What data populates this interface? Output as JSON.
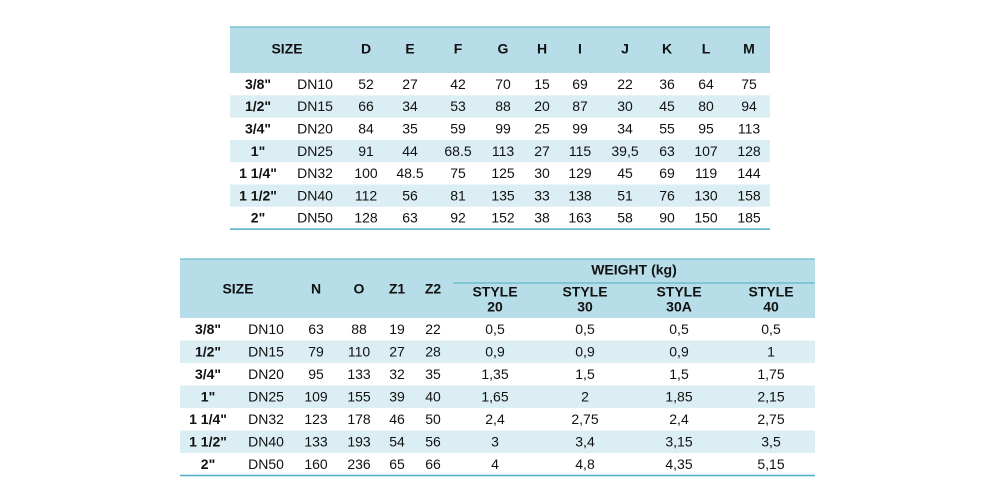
{
  "tables": [
    {
      "header": {
        "size": "SIZE",
        "columns": [
          "D",
          "E",
          "F",
          "G",
          "H",
          "I",
          "J",
          "K",
          "L",
          "M"
        ]
      },
      "rows": [
        [
          "3/8\"",
          "DN10",
          "52",
          "27",
          "42",
          "70",
          "15",
          "69",
          "22",
          "36",
          "64",
          "75"
        ],
        [
          "1/2\"",
          "DN15",
          "66",
          "34",
          "53",
          "88",
          "20",
          "87",
          "30",
          "45",
          "80",
          "94"
        ],
        [
          "3/4\"",
          "DN20",
          "84",
          "35",
          "59",
          "99",
          "25",
          "99",
          "34",
          "55",
          "95",
          "113"
        ],
        [
          "1\"",
          "DN25",
          "91",
          "44",
          "68.5",
          "113",
          "27",
          "115",
          "39,5",
          "63",
          "107",
          "128"
        ],
        [
          "1 1/4\"",
          "DN32",
          "100",
          "48.5",
          "75",
          "125",
          "30",
          "129",
          "45",
          "69",
          "119",
          "144"
        ],
        [
          "1 1/2\"",
          "DN40",
          "112",
          "56",
          "81",
          "135",
          "33",
          "138",
          "51",
          "76",
          "130",
          "158"
        ],
        [
          "2\"",
          "DN50",
          "128",
          "63",
          "92",
          "152",
          "38",
          "163",
          "58",
          "90",
          "150",
          "185"
        ]
      ]
    },
    {
      "header": {
        "size": "SIZE",
        "columns": [
          "N",
          "O",
          "Z1",
          "Z2"
        ],
        "group": "WEIGHT (kg)",
        "group_columns": [
          [
            "STYLE",
            "20"
          ],
          [
            "STYLE",
            "30"
          ],
          [
            "STYLE",
            "30A"
          ],
          [
            "STYLE",
            "40"
          ]
        ]
      },
      "rows": [
        [
          "3/8\"",
          "DN10",
          "63",
          "88",
          "19",
          "22",
          "0,5",
          "0,5",
          "0,5",
          "0,5"
        ],
        [
          "1/2\"",
          "DN15",
          "79",
          "110",
          "27",
          "28",
          "0,9",
          "0,9",
          "0,9",
          "1"
        ],
        [
          "3/4\"",
          "DN20",
          "95",
          "133",
          "32",
          "35",
          "1,35",
          "1,5",
          "1,5",
          "1,75"
        ],
        [
          "1\"",
          "DN25",
          "109",
          "155",
          "39",
          "40",
          "1,65",
          "2",
          "1,85",
          "2,15"
        ],
        [
          "1 1/4\"",
          "DN32",
          "123",
          "178",
          "46",
          "50",
          "2,4",
          "2,75",
          "2,4",
          "2,75"
        ],
        [
          "1 1/2\"",
          "DN40",
          "133",
          "193",
          "54",
          "56",
          "3",
          "3,4",
          "3,15",
          "3,5"
        ],
        [
          "2\"",
          "DN50",
          "160",
          "236",
          "65",
          "66",
          "4",
          "4,8",
          "4,35",
          "5,15"
        ]
      ]
    }
  ]
}
